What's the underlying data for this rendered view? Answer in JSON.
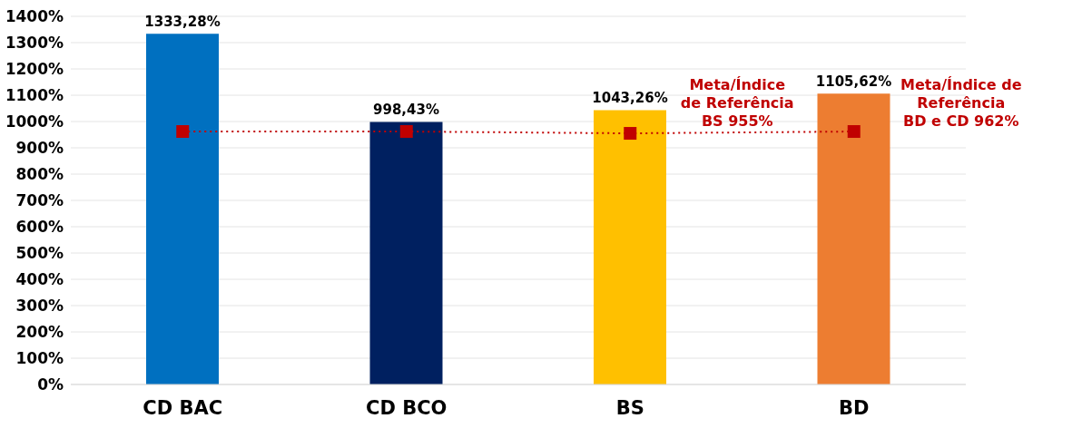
{
  "chart_data": {
    "type": "bar",
    "categories": [
      "CD  BAC",
      "CD  BCO",
      "BS",
      "BD"
    ],
    "series": [
      {
        "colors": [
          "#0070c0",
          "#002060",
          "#ffc000",
          "#ed7d31"
        ],
        "values": [
          1333.28,
          998.43,
          1043.26,
          1105.62
        ],
        "value_labels": [
          "1333,28%",
          "998,43%",
          "1043,26%",
          "1105,62%"
        ]
      },
      {
        "type": "line",
        "color": "#c00000",
        "values": [
          962,
          962,
          955,
          962
        ],
        "marker": "square",
        "line_style": "dotted"
      }
    ],
    "ylim": [
      0,
      1400
    ],
    "yticks": [
      {
        "value": 0,
        "label": "0%"
      },
      {
        "value": 100,
        "label": "100%"
      },
      {
        "value": 200,
        "label": "200%"
      },
      {
        "value": 300,
        "label": "300%"
      },
      {
        "value": 400,
        "label": "400%"
      },
      {
        "value": 500,
        "label": "500%"
      },
      {
        "value": 600,
        "label": "600%"
      },
      {
        "value": 700,
        "label": "700%"
      },
      {
        "value": 800,
        "label": "800%"
      },
      {
        "value": 900,
        "label": "900%"
      },
      {
        "value": 1000,
        "label": "1000%"
      },
      {
        "value": 1100,
        "label": "1100%"
      },
      {
        "value": 1200,
        "label": "1200%"
      },
      {
        "value": 1300,
        "label": "1300%"
      },
      {
        "value": 1400,
        "label": "1400%"
      }
    ],
    "grid": "y",
    "legend": false,
    "annotations": [
      "Meta/Índice\nde Referência\nBS 955%",
      "Meta/Índice de\nReferência\nBD e CD 962%"
    ]
  }
}
